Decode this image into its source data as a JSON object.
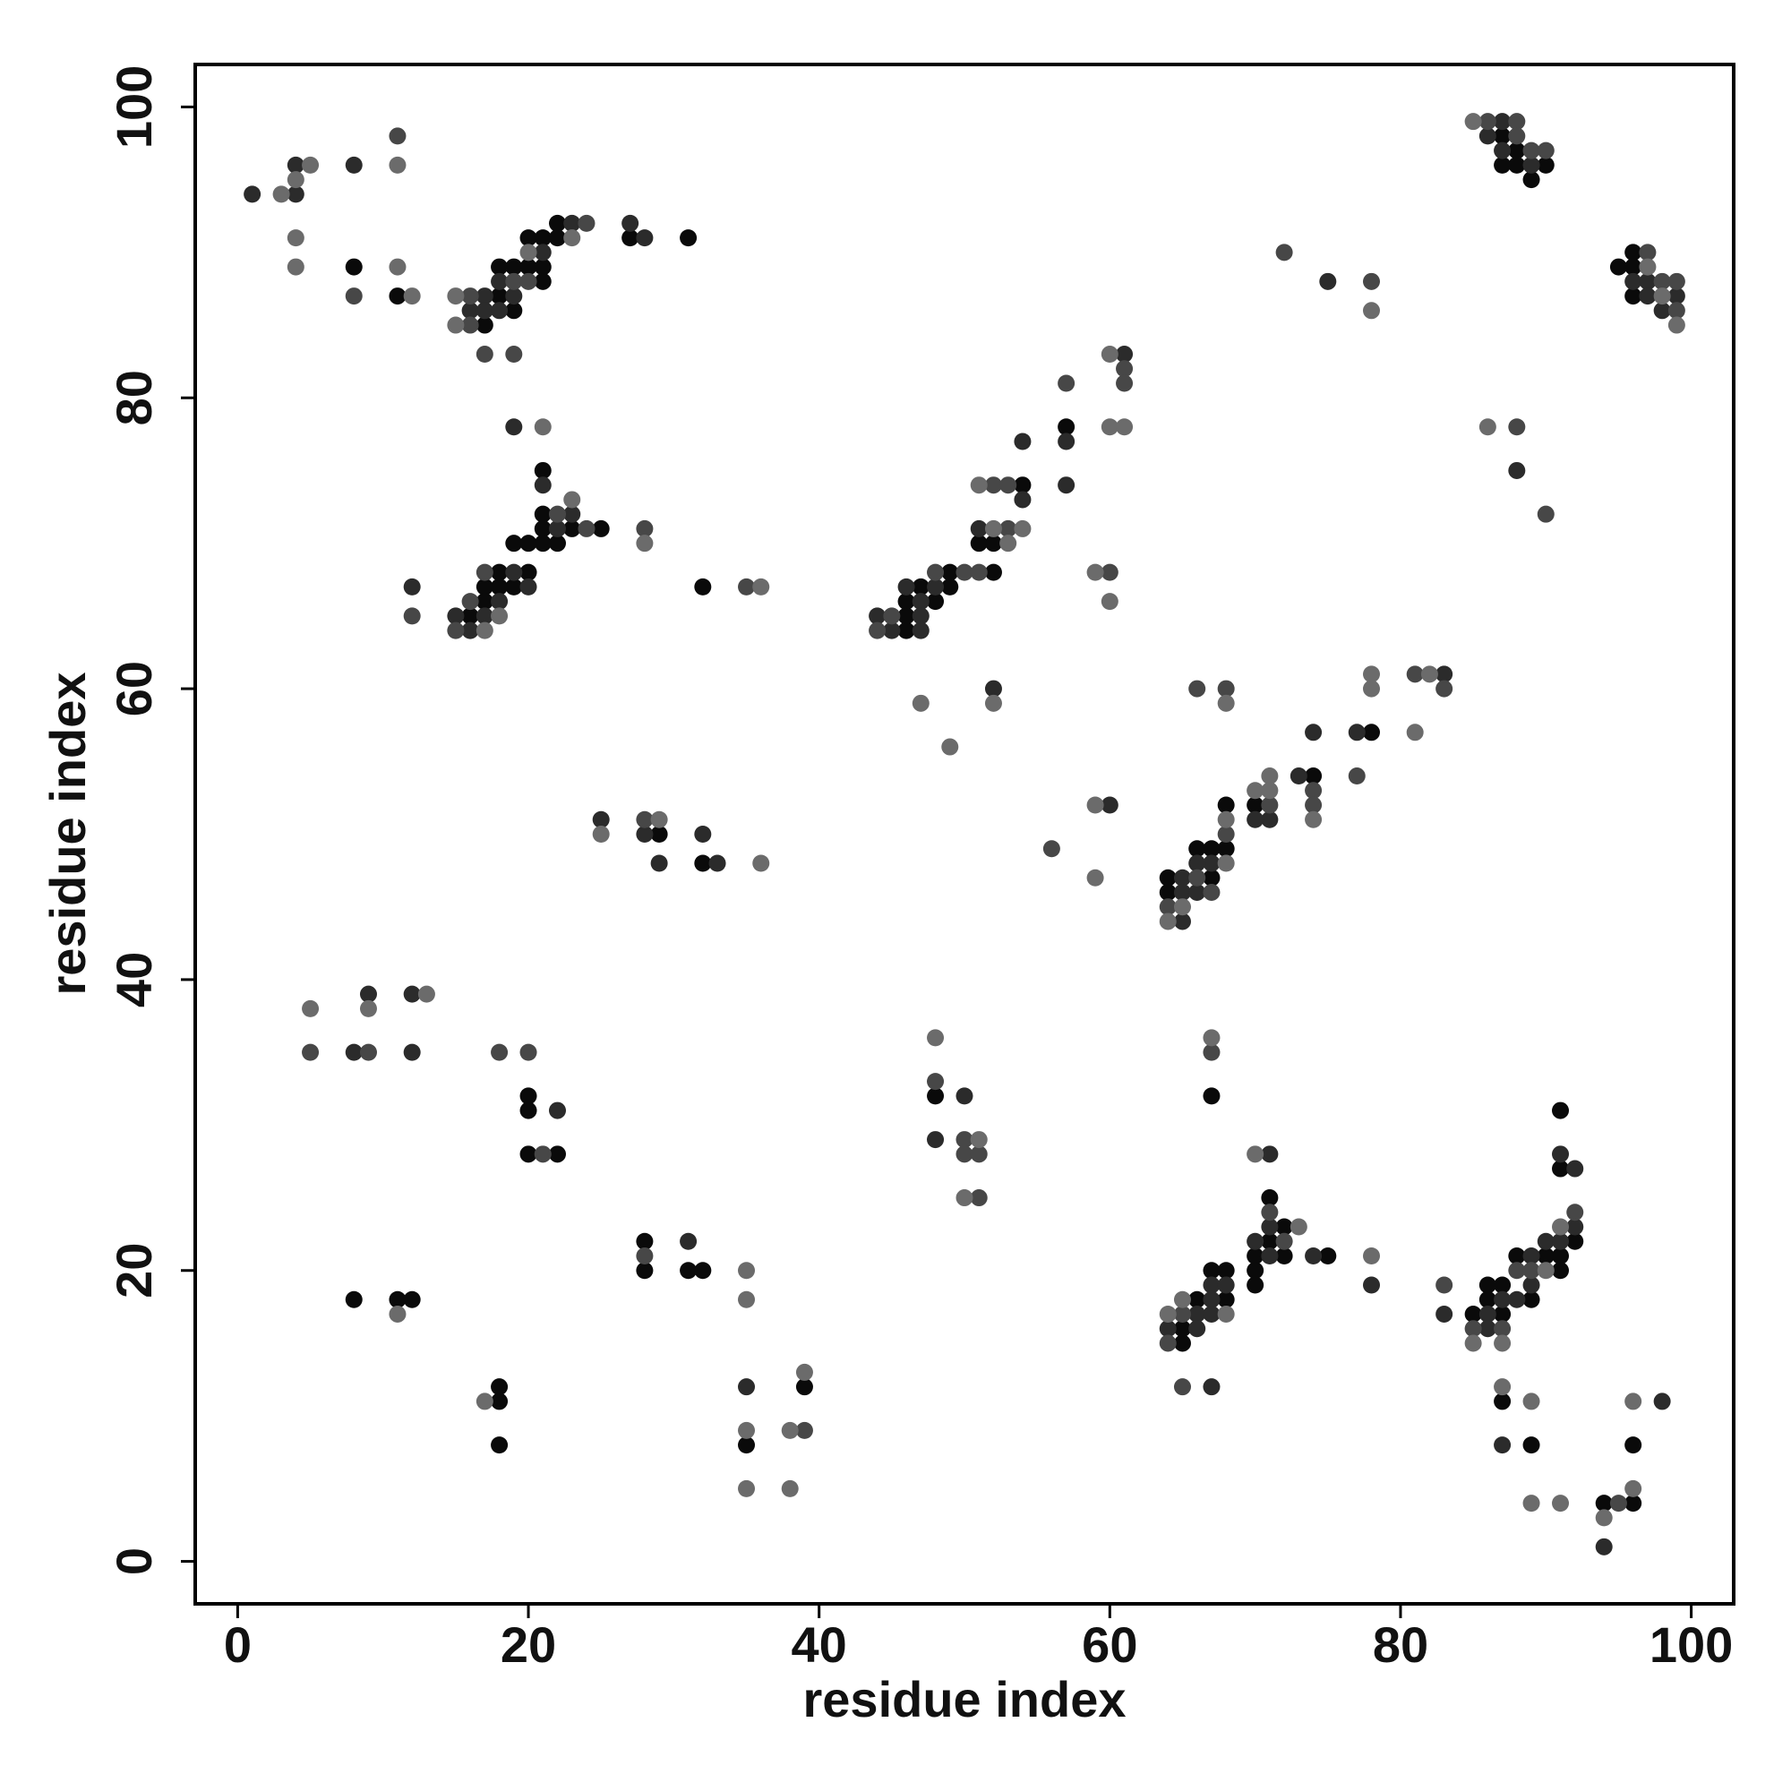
{
  "chart_data": {
    "type": "scatter",
    "xlabel": "residue index",
    "ylabel": "residue index",
    "xlim": [
      -2.92,
      102.92
    ],
    "ylim": [
      -2.92,
      102.92
    ],
    "xticks": [
      0,
      20,
      40,
      60,
      80,
      100
    ],
    "yticks": [
      0,
      20,
      40,
      60,
      80,
      100
    ],
    "series": [
      {
        "color": "#0a0a0a",
        "x": [
          8,
          11,
          17,
          18,
          18,
          19,
          19,
          20,
          20,
          21,
          21,
          21,
          22,
          22,
          27,
          31,
          87,
          87,
          88,
          88,
          89,
          90,
          95,
          96,
          96,
          96,
          21,
          21,
          23,
          25,
          21,
          20,
          19,
          21,
          22,
          18,
          20,
          17,
          18,
          19,
          17,
          16,
          32,
          46,
          46,
          46,
          47,
          48,
          49,
          49,
          51,
          52,
          52,
          54,
          57,
          78,
          74,
          70,
          68,
          68,
          67,
          66,
          64,
          67,
          64,
          29,
          32,
          20,
          20,
          20,
          22,
          48,
          67,
          71,
          72,
          70,
          71,
          72,
          75,
          70,
          70,
          67,
          68,
          66,
          68,
          65,
          65,
          91,
          91,
          92,
          88,
          90,
          91,
          91,
          86,
          87,
          85,
          86,
          89,
          87,
          87,
          89,
          96,
          94,
          96,
          8,
          11,
          12,
          28,
          28,
          31,
          32,
          18,
          18,
          18,
          35,
          39
        ],
        "values": [
          89,
          87,
          85,
          89,
          87,
          89,
          86,
          91,
          89,
          91,
          89,
          88,
          92,
          91,
          91,
          91,
          98,
          96,
          97,
          96,
          95,
          96,
          89,
          90,
          89,
          87,
          75,
          72,
          71,
          71,
          71,
          70,
          70,
          70,
          70,
          68,
          68,
          67,
          67,
          67,
          66,
          65,
          67,
          66,
          65,
          64,
          67,
          66,
          68,
          67,
          70,
          70,
          68,
          74,
          78,
          57,
          54,
          52,
          52,
          49,
          49,
          49,
          47,
          47,
          46,
          50,
          48,
          32,
          31,
          28,
          28,
          32,
          32,
          25,
          23,
          21,
          22,
          21,
          21,
          20,
          19,
          20,
          20,
          18,
          18,
          16,
          15,
          31,
          27,
          22,
          21,
          21,
          21,
          20,
          19,
          19,
          17,
          18,
          18,
          17,
          11,
          8,
          8,
          4,
          4,
          18,
          18,
          18,
          22,
          20,
          20,
          20,
          12,
          11,
          8,
          8,
          12
        ]
      },
      {
        "color": "#2b2b2b",
        "x": [
          1,
          4,
          4,
          8,
          16,
          17,
          17,
          18,
          18,
          19,
          21,
          23,
          27,
          28,
          86,
          87,
          87,
          89,
          96,
          97,
          97,
          98,
          99,
          75,
          88,
          19,
          21,
          23,
          22,
          19,
          20,
          18,
          15,
          17,
          16,
          12,
          44,
          45,
          46,
          47,
          47,
          47,
          48,
          51,
          54,
          54,
          57,
          57,
          61,
          52,
          83,
          74,
          77,
          73,
          71,
          70,
          67,
          66,
          65,
          65,
          66,
          65,
          60,
          25,
          28,
          29,
          32,
          33,
          8,
          9,
          12,
          12,
          22,
          48,
          50,
          71,
          70,
          71,
          71,
          74,
          67,
          68,
          67,
          66,
          67,
          64,
          66,
          67,
          78,
          91,
          92,
          92,
          90,
          91,
          89,
          89,
          87,
          88,
          86,
          86,
          83,
          87,
          98,
          94,
          31,
          35
        ],
        "values": [
          94,
          96,
          94,
          96,
          86,
          87,
          86,
          88,
          86,
          87,
          90,
          92,
          92,
          91,
          98,
          99,
          97,
          96,
          88,
          88,
          87,
          86,
          87,
          88,
          75,
          78,
          74,
          72,
          71,
          68,
          67,
          66,
          65,
          65,
          64,
          67,
          65,
          64,
          67,
          66,
          65,
          64,
          67,
          71,
          73,
          77,
          77,
          74,
          83,
          60,
          61,
          57,
          57,
          54,
          51,
          51,
          48,
          48,
          47,
          46,
          46,
          44,
          52,
          51,
          50,
          48,
          50,
          48,
          35,
          39,
          39,
          35,
          31,
          29,
          32,
          28,
          22,
          23,
          21,
          21,
          19,
          19,
          18,
          17,
          17,
          16,
          16,
          12,
          19,
          28,
          27,
          23,
          22,
          22,
          21,
          19,
          18,
          18,
          17,
          16,
          17,
          8,
          11,
          1,
          22,
          12
        ]
      },
      {
        "color": "#474747",
        "x": [
          8,
          11,
          16,
          16,
          17,
          19,
          19,
          20,
          24,
          86,
          88,
          88,
          89,
          90,
          97,
          98,
          99,
          99,
          72,
          78,
          88,
          90,
          22,
          24,
          17,
          16,
          15,
          12,
          28,
          35,
          44,
          45,
          48,
          50,
          51,
          52,
          53,
          53,
          57,
          61,
          61,
          60,
          66,
          68,
          81,
          83,
          77,
          74,
          74,
          71,
          68,
          66,
          67,
          64,
          56,
          28,
          5,
          9,
          18,
          20,
          21,
          48,
          50,
          50,
          51,
          51,
          67,
          71,
          72,
          65,
          64,
          65,
          92,
          88,
          89,
          85,
          87,
          83,
          95,
          28,
          39
        ],
        "values": [
          87,
          98,
          87,
          85,
          83,
          88,
          83,
          88,
          92,
          99,
          99,
          98,
          97,
          97,
          90,
          88,
          88,
          86,
          90,
          88,
          78,
          72,
          72,
          71,
          68,
          66,
          64,
          65,
          71,
          67,
          64,
          65,
          68,
          68,
          68,
          74,
          74,
          71,
          81,
          82,
          81,
          68,
          60,
          60,
          61,
          60,
          54,
          53,
          52,
          52,
          50,
          47,
          46,
          45,
          49,
          51,
          35,
          35,
          35,
          35,
          28,
          33,
          29,
          28,
          28,
          25,
          35,
          24,
          22,
          17,
          15,
          12,
          24,
          20,
          20,
          16,
          16,
          19,
          4,
          21,
          9
        ]
      },
      {
        "color": "#6b6b6b",
        "x": [
          3,
          4,
          5,
          4,
          4,
          11,
          11,
          12,
          15,
          15,
          20,
          23,
          85,
          97,
          98,
          99,
          78,
          86,
          21,
          23,
          18,
          17,
          28,
          36,
          51,
          52,
          53,
          54,
          60,
          60,
          61,
          59,
          60,
          47,
          49,
          52,
          68,
          78,
          78,
          82,
          81,
          74,
          71,
          70,
          71,
          68,
          68,
          65,
          64,
          59,
          59,
          25,
          29,
          36,
          5,
          9,
          13,
          48,
          51,
          50,
          67,
          70,
          73,
          65,
          64,
          68,
          78,
          91,
          90,
          85,
          87,
          87,
          89,
          89,
          91,
          96,
          96,
          94,
          11,
          35,
          35,
          17,
          35,
          35,
          38,
          39,
          38
        ],
        "values": [
          94,
          95,
          96,
          91,
          89,
          96,
          89,
          87,
          87,
          85,
          90,
          91,
          99,
          89,
          87,
          85,
          86,
          78,
          78,
          73,
          65,
          64,
          70,
          67,
          74,
          71,
          70,
          71,
          83,
          78,
          78,
          68,
          66,
          59,
          56,
          59,
          59,
          61,
          60,
          61,
          57,
          51,
          54,
          53,
          53,
          51,
          48,
          45,
          44,
          52,
          47,
          50,
          51,
          48,
          38,
          38,
          39,
          36,
          29,
          25,
          36,
          28,
          23,
          18,
          17,
          17,
          21,
          23,
          20,
          15,
          15,
          12,
          11,
          4,
          4,
          11,
          5,
          3,
          17,
          20,
          18,
          11,
          9,
          5,
          9,
          13,
          5
        ]
      }
    ]
  }
}
